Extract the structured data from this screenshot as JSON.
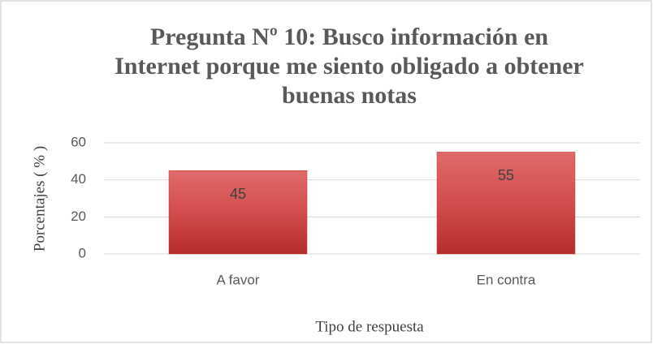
{
  "chart_data": {
    "type": "bar",
    "title": [
      "Pregunta Nº 10: Busco información  en",
      "Internet porque  me siento obligado  a obtener",
      "buenas notas"
    ],
    "y_label": "Porcentajes ( % )",
    "x_label": "Tipo de respuesta",
    "categories": [
      "A favor",
      "En contra"
    ],
    "values": [
      45,
      55
    ],
    "color": "#c0392b",
    "ylim": [
      0,
      60
    ],
    "yticks": [
      0,
      20,
      40,
      60
    ],
    "grid": true
  }
}
